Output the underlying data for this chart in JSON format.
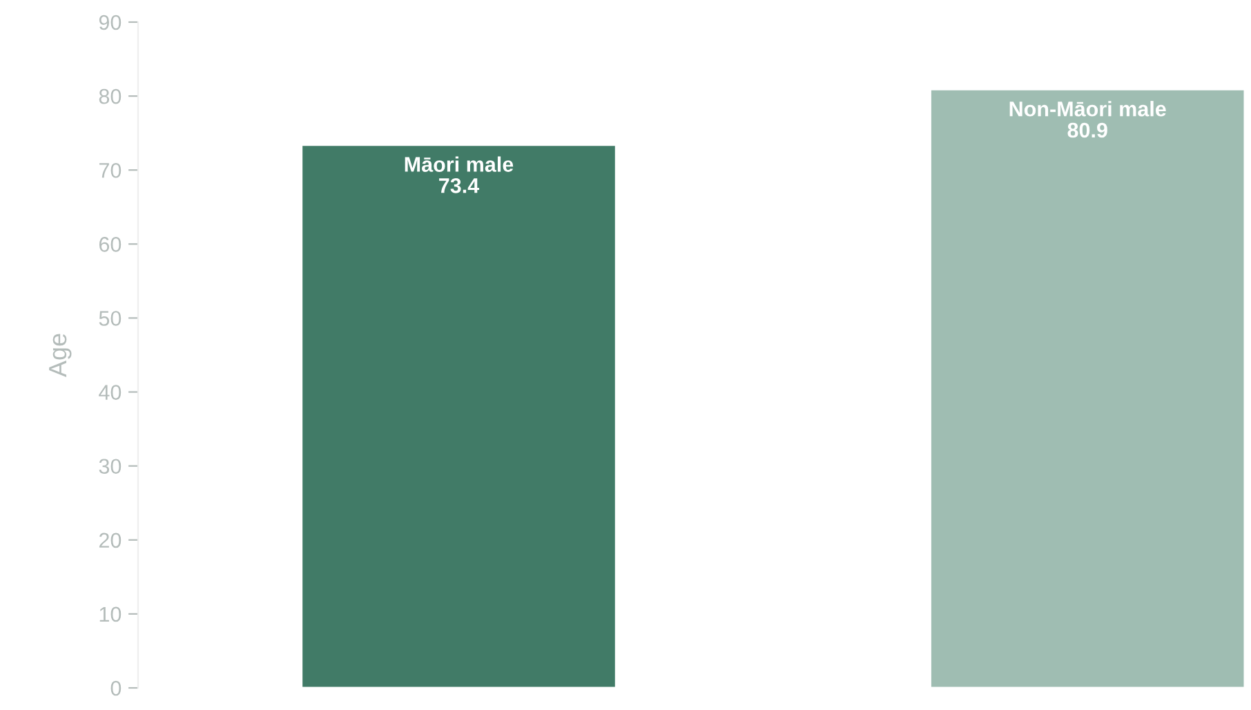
{
  "chart_data": {
    "type": "bar",
    "ylabel": "Age",
    "categories": [
      "Māori male",
      "Non-Māori male"
    ],
    "values": [
      73.4,
      80.9
    ],
    "colors": [
      "#417b67",
      "#9fbdb2"
    ],
    "ylim": [
      0,
      90
    ],
    "yticks": [
      0,
      10,
      20,
      30,
      40,
      50,
      60,
      70,
      80,
      90
    ],
    "data_labels": true,
    "tick_labels": "y",
    "grid": false,
    "legend": false
  }
}
